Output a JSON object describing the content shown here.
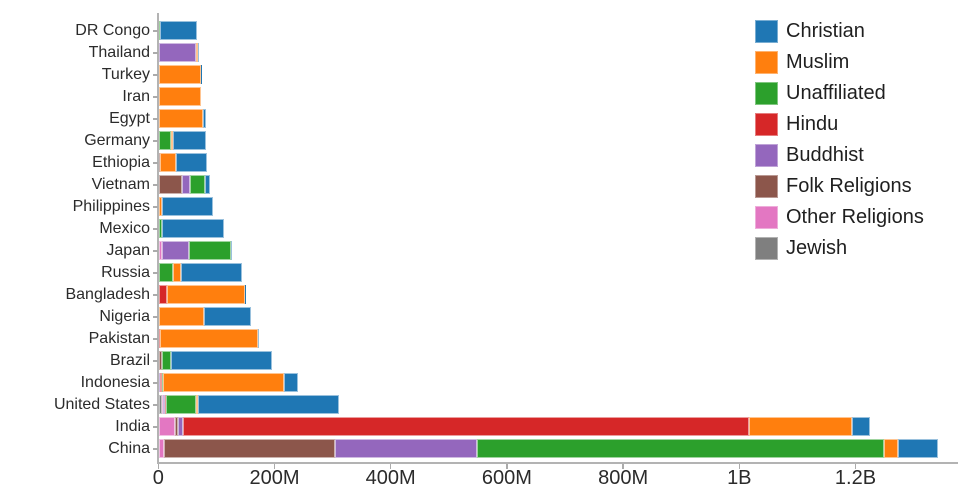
{
  "chart_data": {
    "type": "bar",
    "subtype": "horizontal-stacked",
    "title": "",
    "values_unit": "millions of people",
    "grid": false,
    "categories": [
      "DR Congo",
      "Thailand",
      "Turkey",
      "Iran",
      "Egypt",
      "Germany",
      "Ethiopia",
      "Vietnam",
      "Philippines",
      "Mexico",
      "Japan",
      "Russia",
      "Bangladesh",
      "Nigeria",
      "Pakistan",
      "Brazil",
      "Indonesia",
      "United States",
      "India",
      "China"
    ],
    "series": [
      {
        "name": "Christian",
        "color": "#1f77b4",
        "values": [
          63.15,
          0.63,
          0.31,
          0.12,
          4.14,
          56.54,
          52.07,
          7.16,
          86.37,
          107.78,
          2.02,
          104.75,
          0.29,
          80.51,
          2.75,
          173.3,
          23.66,
          243.06,
          31.13,
          68.41
        ]
      },
      {
        "name": "Muslim",
        "color": "#ff7f0e",
        "values": [
          0.97,
          3.78,
          71.33,
          73.57,
          76.99,
          4.76,
          28.68,
          0.16,
          5.12,
          0.01,
          0.19,
          14.29,
          134.43,
          77.3,
          167.41,
          0.04,
          209.12,
          2.77,
          176.19,
          24.69
        ]
      },
      {
        "name": "Unaffiliated",
        "color": "#2ca02c",
        "values": [
          0.13,
          0.02,
          0.88,
          0.04,
          0.02,
          20.35,
          0.01,
          26.04,
          0.07,
          5.26,
          72.12,
          23.18,
          0.01,
          0.05,
          0.03,
          15.41,
          0.24,
          50.98,
          0.87,
          700.68
        ]
      },
      {
        "name": "Hindu",
        "color": "#d62728",
        "values": [
          0,
          0.07,
          0,
          0,
          0,
          0.08,
          0,
          0.06,
          0.04,
          0,
          0.03,
          0.05,
          13.52,
          0,
          3.33,
          0,
          4.05,
          1.79,
          973.75,
          0.02
        ]
      },
      {
        "name": "Buddhist",
        "color": "#9467bd",
        "values": [
          0,
          64.42,
          0.03,
          0,
          0,
          0.25,
          0,
          14.38,
          0.04,
          0.01,
          45.81,
          0.61,
          0.73,
          0,
          0,
          0.25,
          1.72,
          3.57,
          9.25,
          244.08
        ]
      },
      {
        "name": "Folk Religions",
        "color": "#8c564b",
        "values": [
          1.19,
          0.19,
          0.03,
          0,
          0,
          0.08,
          2.15,
          39.75,
          1.41,
          0.11,
          0.51,
          0.25,
          0.01,
          0.95,
          0.03,
          5.54,
          0.75,
          0.63,
          5.84,
          294.32
        ]
      },
      {
        "name": "Other Religions",
        "color": "#e377c2",
        "values": [
          0.46,
          0.01,
          0.12,
          0.23,
          0,
          0.09,
          0.04,
          0.48,
          0.16,
          0.09,
          5.95,
          0.15,
          0.01,
          0.05,
          0.02,
          0.61,
          0.34,
          1.9,
          27.56,
          9.9
        ]
      },
      {
        "name": "Jewish",
        "color": "#7f7f7f",
        "values": [
          0,
          0,
          0.02,
          0.01,
          0,
          0.23,
          0,
          0,
          0,
          0.04,
          0,
          0.41,
          0,
          0,
          0,
          0.11,
          0,
          5.69,
          0.01,
          0
        ]
      }
    ],
    "stack_order_left_to_right": [
      "Jewish",
      "Other Religions",
      "Folk Religions",
      "Buddhist",
      "Hindu",
      "Unaffiliated",
      "Muslim",
      "Christian"
    ],
    "x_axis": {
      "tick_labels": [
        "0",
        "200M",
        "400M",
        "600M",
        "800M",
        "1B",
        "1.2B"
      ],
      "tick_values_millions": [
        0,
        200,
        400,
        600,
        800,
        1000,
        1200
      ],
      "range_millions": [
        0,
        1376
      ]
    },
    "legend": {
      "position": "top-right",
      "entries": [
        "Christian",
        "Muslim",
        "Unaffiliated",
        "Hindu",
        "Buddhist",
        "Folk Religions",
        "Other Religions",
        "Jewish"
      ]
    }
  },
  "colors": {
    "axis": "#b3b3b3",
    "tick": "#ababab",
    "label_text": "#2b2b2b",
    "legend_text": "#1f1f1f",
    "background": "#ffffff"
  }
}
